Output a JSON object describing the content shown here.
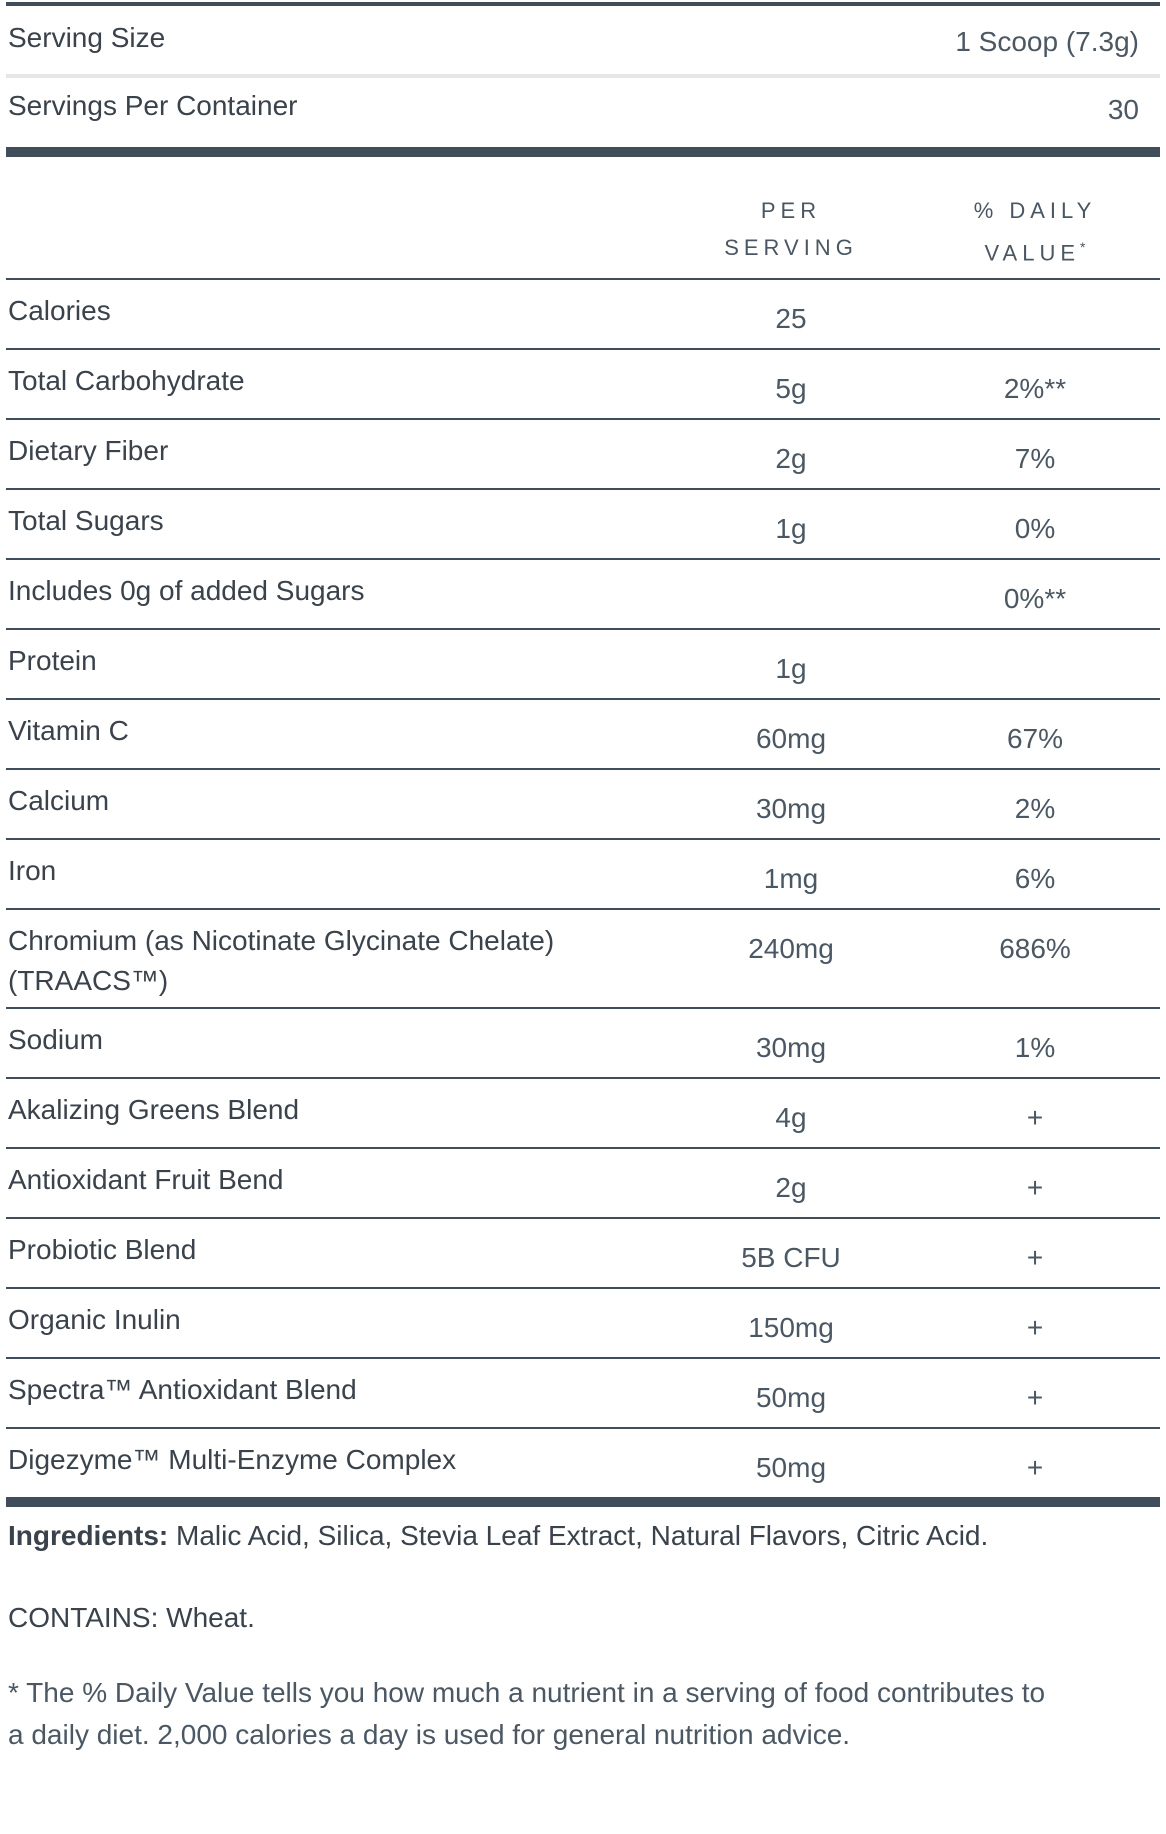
{
  "serving_info": {
    "serving_size": {
      "label": "Serving Size",
      "value": "1 Scoop (7.3g)"
    },
    "servings_per_container": {
      "label": "Servings Per Container",
      "value": "30"
    }
  },
  "table": {
    "columns": {
      "per_serving_line1": "PER",
      "per_serving_line2": "SERVING",
      "daily_value_line1": "% DAILY",
      "daily_value_line2": "VALUE",
      "daily_value_sup": "*"
    },
    "rows": [
      {
        "label": "Calories",
        "amount": "25",
        "dv": ""
      },
      {
        "label": "Total Carbohydrate",
        "amount": "5g",
        "dv": "2%**"
      },
      {
        "label": "Dietary Fiber",
        "amount": "2g",
        "dv": "7%"
      },
      {
        "label": "Total Sugars",
        "amount": "1g",
        "dv": "0%"
      },
      {
        "label": "Includes 0g of added Sugars",
        "amount": "",
        "dv": "0%**"
      },
      {
        "label": "Protein",
        "amount": "1g",
        "dv": ""
      },
      {
        "label": "Vitamin C",
        "amount": "60mg",
        "dv": "67%"
      },
      {
        "label": "Calcium",
        "amount": "30mg",
        "dv": "2%"
      },
      {
        "label": "Iron",
        "amount": "1mg",
        "dv": "6%"
      },
      {
        "label": "Chromium (as Nicotinate Glycinate Chelate) (TRAACS™)",
        "amount": "240mg",
        "dv": "686%"
      },
      {
        "label": "Sodium",
        "amount": "30mg",
        "dv": "1%"
      },
      {
        "label": "Akalizing Greens Blend",
        "amount": "4g",
        "dv": "+"
      },
      {
        "label": "Antioxidant Fruit Bend",
        "amount": "2g",
        "dv": "+"
      },
      {
        "label": "Probiotic Blend",
        "amount": "5B CFU",
        "dv": "+"
      },
      {
        "label": "Organic Inulin",
        "amount": "150mg",
        "dv": "+"
      },
      {
        "label": "Spectra™ Antioxidant Blend",
        "amount": "50mg",
        "dv": "+"
      },
      {
        "label": "Digezyme™ Multi-Enzyme Complex",
        "amount": "50mg",
        "dv": "+"
      }
    ]
  },
  "footer": {
    "ingredients_label": "Ingredients:",
    "ingredients_text": " Malic Acid, Silica, Stevia Leaf Extract, Natural Flavors, Citric Acid.",
    "contains": "CONTAINS: Wheat.",
    "footnote_lines": [
      "* The % Daily Value tells you how much a nutrient in a serving of food contributes to",
      "a daily diet. 2,000 calories a day is used for general nutrition advice."
    ]
  },
  "colors": {
    "ink": "#3a424c",
    "value_text": "#4b5864",
    "header_text": "#4a5763",
    "rule": "#404d5a",
    "light_rule": "#e6e6e7",
    "background": "#ffffff"
  }
}
